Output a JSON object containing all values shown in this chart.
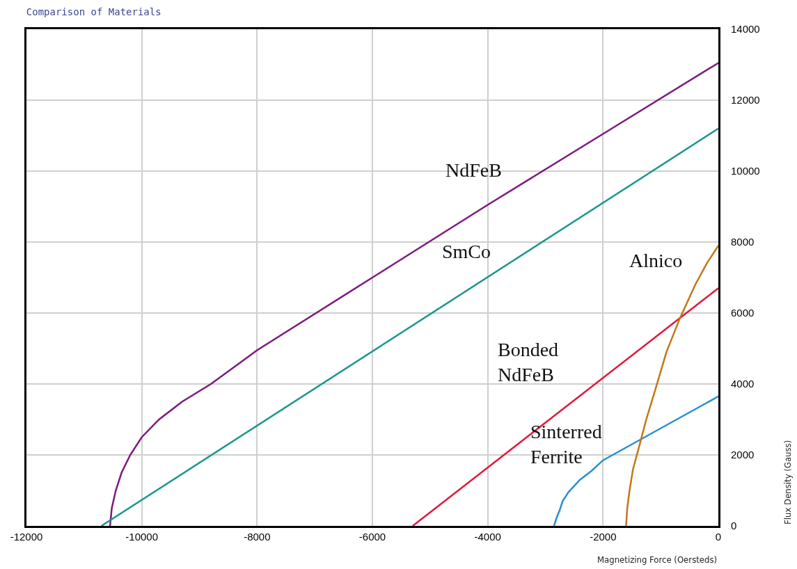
{
  "chart_data": {
    "type": "line",
    "title": "Comparison of Materials",
    "xlabel": "Magnetizing Force (Oersteds)",
    "ylabel": "Flux Density (Gauss)",
    "xlim": [
      -12000,
      0
    ],
    "xticks": [
      -12000,
      -10000,
      -8000,
      -6000,
      -4000,
      -2000,
      0
    ],
    "ylim": [
      0,
      14000
    ],
    "yticks": [
      0,
      2000,
      4000,
      6000,
      8000,
      10000,
      12000,
      14000
    ],
    "grid": true,
    "legend": false,
    "marker": "none",
    "line_style": "solid",
    "series": [
      {
        "name": "NdFeB",
        "color": "#7b1a7e",
        "x": [
          -10550,
          -10520,
          -10450,
          -10350,
          -10200,
          -10000,
          -9700,
          -9300,
          -8800,
          -8000,
          -6000,
          -4000,
          -2000,
          0
        ],
        "values": [
          0,
          500,
          1000,
          1500,
          2000,
          2500,
          3000,
          3500,
          4000,
          4950,
          7000,
          9050,
          11050,
          13050
        ]
      },
      {
        "name": "SmCo",
        "color": "#1a9690",
        "x": [
          -10700,
          0
        ],
        "values": [
          0,
          11200
        ]
      },
      {
        "name": "Bonded NdFeB",
        "color": "#e0193c",
        "x": [
          -5300,
          0
        ],
        "values": [
          0,
          6700
        ]
      },
      {
        "name": "Sinterred Ferrite",
        "color": "#2a8fcc",
        "x": [
          -2850,
          -2800,
          -2750,
          -2700,
          -2600,
          -2400,
          -2200,
          -2000,
          -1000,
          0
        ],
        "values": [
          0,
          250,
          450,
          700,
          950,
          1300,
          1550,
          1850,
          2750,
          3650
        ]
      },
      {
        "name": "Alnico",
        "color": "#c07818",
        "x": [
          -1600,
          -1580,
          -1540,
          -1480,
          -1380,
          -1250,
          -1100,
          -900,
          -665,
          -400,
          -200,
          0
        ],
        "values": [
          0,
          500,
          1000,
          1600,
          2200,
          3000,
          3800,
          4900,
          5860,
          6800,
          7400,
          7900
        ]
      }
    ]
  }
}
